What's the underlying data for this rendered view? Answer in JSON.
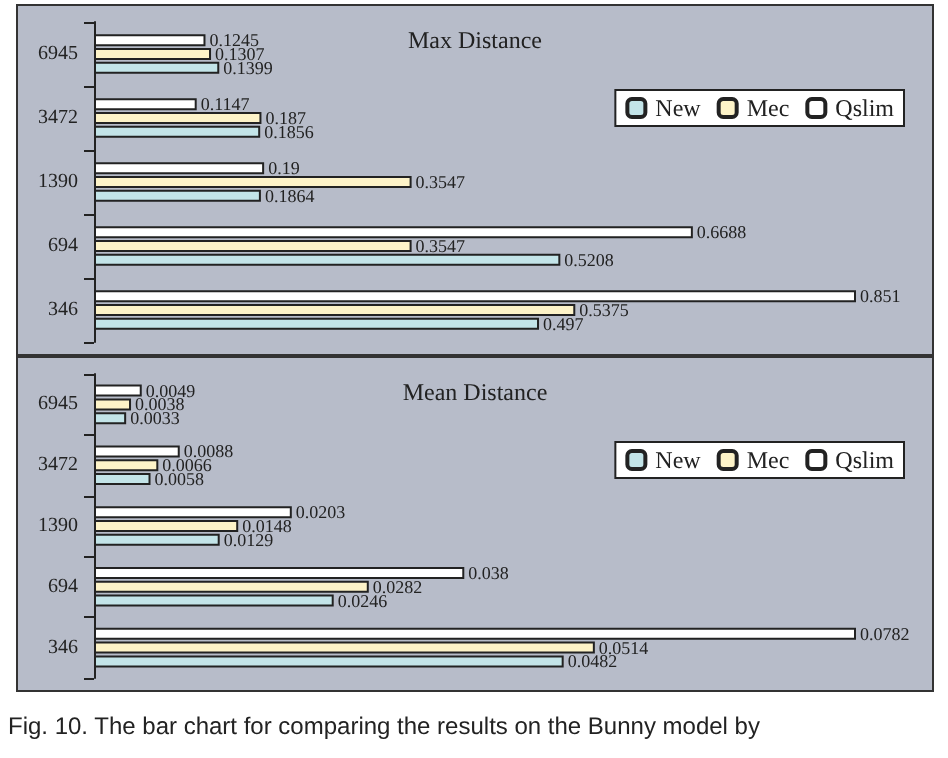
{
  "chart_data": [
    {
      "type": "bar",
      "orientation": "horizontal",
      "title": "Max Distance",
      "categories": [
        "6945",
        "3472",
        "1390",
        "694",
        "346"
      ],
      "series": [
        {
          "name": "New",
          "color": "#c3e4e8",
          "values": [
            0.1399,
            0.1856,
            0.1864,
            0.5208,
            0.497
          ]
        },
        {
          "name": "Mec",
          "color": "#fdf3c8",
          "values": [
            0.1307,
            0.187,
            0.3547,
            0.3547,
            0.5375
          ]
        },
        {
          "name": "Qslim",
          "color": "#ffffff",
          "values": [
            0.1245,
            0.1147,
            0.19,
            0.6688,
            0.851
          ]
        }
      ],
      "data_labels": true,
      "legend": "top right",
      "grid": false,
      "tick_labels": "y"
    },
    {
      "type": "bar",
      "orientation": "horizontal",
      "title": "Mean Distance",
      "categories": [
        "6945",
        "3472",
        "1390",
        "694",
        "346"
      ],
      "series": [
        {
          "name": "New",
          "color": "#c3e4e8",
          "values": [
            0.0033,
            0.0058,
            0.0129,
            0.0246,
            0.0482
          ]
        },
        {
          "name": "Mec",
          "color": "#fdf3c8",
          "values": [
            0.0038,
            0.0066,
            0.0148,
            0.0282,
            0.0514
          ]
        },
        {
          "name": "Qslim",
          "color": "#ffffff",
          "values": [
            0.0049,
            0.0088,
            0.0203,
            0.038,
            0.0782
          ]
        }
      ],
      "data_labels": true,
      "legend": "top right",
      "grid": false,
      "tick_labels": "y",
      "annotations": [
        "Fig. 10. The bar chart for comparing the results on the Bunny model by"
      ]
    }
  ]
}
